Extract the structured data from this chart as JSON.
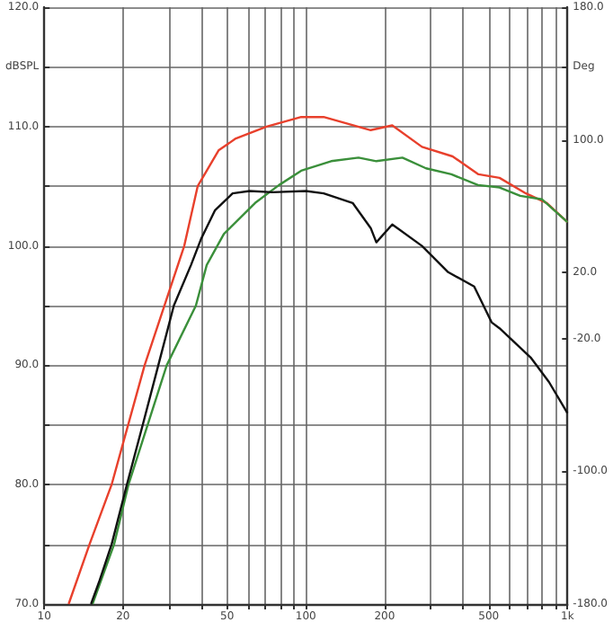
{
  "chart_data": {
    "type": "line",
    "xlim": [
      10,
      1000
    ],
    "log": "x",
    "xticks": [
      10,
      20,
      {
        "value": 30,
        "label": null
      },
      {
        "value": 40,
        "label": null
      },
      50,
      {
        "value": 60,
        "label": null
      },
      {
        "value": 70,
        "label": null
      },
      {
        "value": 80,
        "label": null
      },
      {
        "value": 90,
        "label": null
      },
      100,
      200,
      {
        "value": 300,
        "label": null
      },
      {
        "value": 400,
        "label": null
      },
      500,
      {
        "value": 600,
        "label": null
      },
      {
        "value": 700,
        "label": null
      },
      {
        "value": 800,
        "label": null
      },
      {
        "value": 900,
        "label": null
      },
      {
        "value": 1000,
        "label": "1k"
      }
    ],
    "ylim": [
      70,
      120
    ],
    "yticks": [
      {
        "value": 70,
        "label": "70.0"
      },
      {
        "value": 75,
        "label": null
      },
      {
        "value": 80,
        "label": "80.0"
      },
      {
        "value": 85,
        "label": null
      },
      {
        "value": 90,
        "label": "90.0"
      },
      {
        "value": 95,
        "label": null
      },
      {
        "value": 100,
        "label": "100.0"
      },
      {
        "value": 105,
        "label": null
      },
      {
        "value": 110,
        "label": "110.0"
      },
      {
        "value": 115,
        "label": "dBSPL"
      },
      {
        "value": 120,
        "label": "120.0"
      }
    ],
    "y2lim": [
      -180,
      180
    ],
    "y2ticks": [
      {
        "value": -180,
        "label": "-180.0"
      },
      {
        "value": -100,
        "label": "-100.0"
      },
      {
        "value": -20,
        "label": "-20.0"
      },
      {
        "value": 20,
        "label": "20.0"
      },
      {
        "value": 100,
        "label": "100.0"
      },
      {
        "value": 144,
        "label": "Deg"
      },
      {
        "value": 180,
        "label": "180.0"
      }
    ],
    "grid": true,
    "marker": "none",
    "line_style": "solid",
    "series": [
      {
        "color": "#e8402c",
        "x": [
          12.4,
          14.9,
          18.1,
          24.2,
          34.3,
          38.6,
          46.4,
          54,
          70.8,
          96,
          117,
          177,
          214,
          278,
          364,
          457,
          550,
          694,
          834,
          1000
        ],
        "values": [
          70,
          75,
          80,
          90,
          100,
          105,
          108,
          109,
          110,
          110.8,
          110.8,
          109.7,
          110.1,
          108.3,
          107.5,
          106,
          105.7,
          104.4,
          103.6,
          102
        ]
      },
      {
        "color": "#3a8f3a",
        "x": [
          15.3,
          18.5,
          21,
          29.4,
          38,
          41.8,
          48.6,
          64,
          79,
          96,
          125,
          159,
          186,
          234,
          288,
          360,
          455,
          550,
          660,
          800,
          1000
        ],
        "values": [
          70,
          75,
          80,
          90,
          95,
          98.4,
          101,
          103.6,
          105.1,
          106.3,
          107.1,
          107.4,
          107.1,
          107.4,
          106.5,
          106,
          105.1,
          104.9,
          104.2,
          103.9,
          102
        ]
      },
      {
        "color": "#111111",
        "x": [
          15.1,
          16.3,
          18.1,
          20.7,
          23.8,
          27.3,
          31.3,
          36.4,
          39.8,
          45,
          52.5,
          61,
          74.6,
          100,
          117,
          151,
          177,
          186,
          214,
          278,
          350,
          440,
          513,
          550,
          727,
          850,
          1000
        ],
        "values": [
          70,
          72,
          75,
          80,
          85,
          90,
          95,
          98.4,
          100.6,
          103,
          104.4,
          104.6,
          104.5,
          104.6,
          104.4,
          103.6,
          101.5,
          100.3,
          101.8,
          100,
          97.8,
          96.6,
          93.6,
          93.1,
          90.6,
          88.6,
          86
        ]
      }
    ]
  }
}
